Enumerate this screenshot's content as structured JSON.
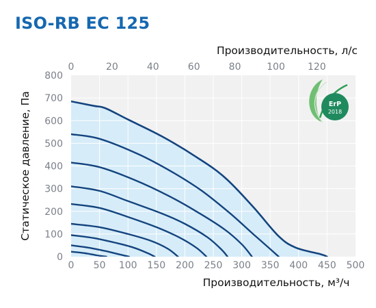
{
  "header": {
    "title": "ISO-RB EC 125"
  },
  "badge": {
    "label": "ErP",
    "year": "2018",
    "color": "#1f8a5e"
  },
  "chart_data": {
    "type": "area",
    "title": "ISO-RB EC 125",
    "xlabel_bottom": "Производительность, м³/ч",
    "xlabel_top": "Производительность, л/с",
    "ylabel": "Статическое давление, Па",
    "x_bottom_ticks": [
      "0",
      "50",
      "100",
      "150",
      "200",
      "250",
      "300",
      "350",
      "400",
      "450",
      "500"
    ],
    "x_top_ticks": [
      "0",
      "20",
      "40",
      "60",
      "80",
      "100",
      "120"
    ],
    "y_ticks": [
      "0",
      "100",
      "200",
      "300",
      "400",
      "500",
      "600",
      "700",
      "800"
    ],
    "xlim": [
      0,
      500
    ],
    "x_top_lim": [
      0,
      138.9
    ],
    "ylim": [
      0,
      800
    ],
    "grid": true,
    "fill_color": "#d6ecf8",
    "line_color": "#14447f",
    "series": [
      {
        "x": [
          0,
          40,
          60,
          100,
          160,
          220,
          270,
          320,
          365,
          395,
          440,
          450
        ],
        "y": [
          685,
          665,
          655,
          605,
          530,
          440,
          350,
          220,
          90,
          40,
          10,
          0
        ]
      },
      {
        "x": [
          0,
          50,
          120,
          180,
          230,
          280,
          320,
          345,
          365
        ],
        "y": [
          540,
          520,
          450,
          370,
          290,
          190,
          100,
          45,
          0
        ]
      },
      {
        "x": [
          0,
          50,
          110,
          170,
          220,
          270,
          300,
          318
        ],
        "y": [
          415,
          395,
          340,
          270,
          200,
          120,
          55,
          0
        ]
      },
      {
        "x": [
          0,
          50,
          100,
          160,
          200,
          240,
          265,
          275
        ],
        "y": [
          310,
          290,
          245,
          190,
          145,
          85,
          30,
          0
        ]
      },
      {
        "x": [
          0,
          50,
          100,
          150,
          190,
          220,
          238
        ],
        "y": [
          232,
          215,
          175,
          130,
          85,
          40,
          0
        ]
      },
      {
        "x": [
          0,
          50,
          100,
          140,
          170,
          188
        ],
        "y": [
          145,
          130,
          100,
          70,
          35,
          0
        ]
      },
      {
        "x": [
          0,
          40,
          80,
          110,
          135,
          147
        ],
        "y": [
          95,
          82,
          60,
          40,
          15,
          0
        ]
      },
      {
        "x": [
          0,
          30,
          60,
          85,
          102
        ],
        "y": [
          50,
          40,
          25,
          10,
          0
        ]
      },
      {
        "x": [
          0,
          25,
          45,
          62
        ],
        "y": [
          22,
          15,
          6,
          0
        ]
      }
    ]
  }
}
